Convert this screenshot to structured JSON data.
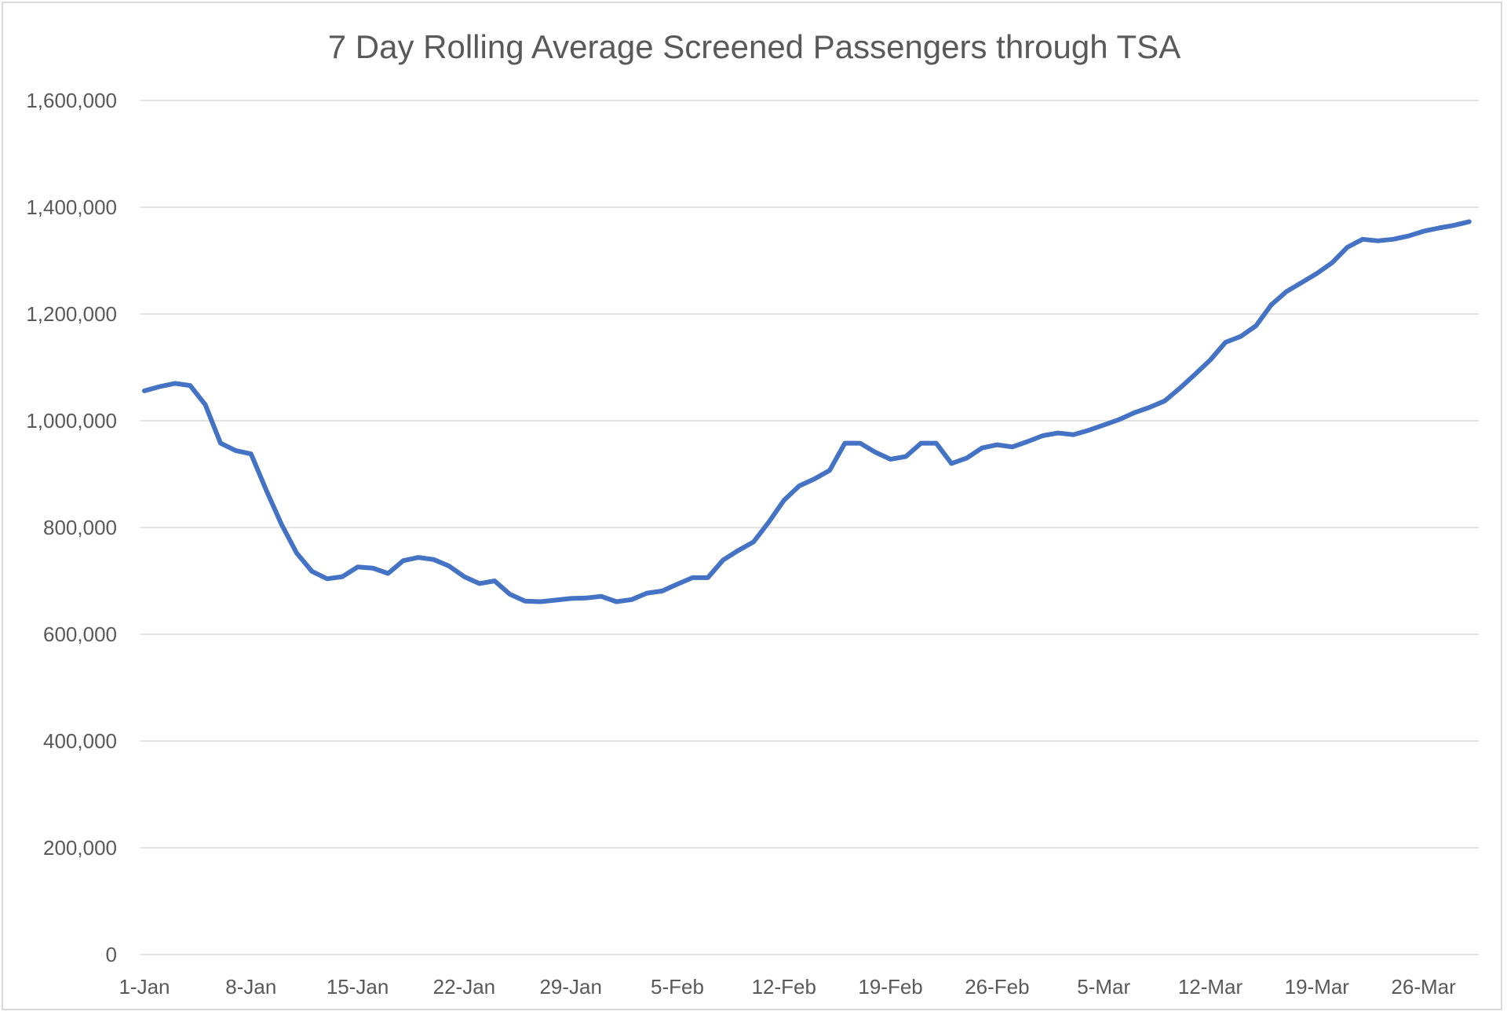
{
  "chart_data": {
    "type": "line",
    "title": "7 Day Rolling Average Screened Passengers through TSA",
    "xlabel": "",
    "ylabel": "",
    "ylim": [
      0,
      1600000
    ],
    "yticks": [
      0,
      200000,
      400000,
      600000,
      800000,
      1000000,
      1200000,
      1400000,
      1600000
    ],
    "ytick_labels": [
      "0",
      "200,000",
      "400,000",
      "600,000",
      "800,000",
      "1,000,000",
      "1,200,000",
      "1,400,000",
      "1,600,000"
    ],
    "xlim": [
      "1-Jan",
      "31-Mar"
    ],
    "xtick_labels": [
      "1-Jan",
      "8-Jan",
      "15-Jan",
      "22-Jan",
      "29-Jan",
      "5-Feb",
      "12-Feb",
      "19-Feb",
      "26-Feb",
      "5-Mar",
      "12-Mar",
      "19-Mar",
      "26-Mar"
    ],
    "grid": true,
    "legend": "none",
    "series_color": "#4472c4",
    "series": [
      {
        "values": [
          1056000,
          1064000,
          1070000,
          1066000,
          1030000,
          958000,
          944000,
          938000,
          870000,
          806000,
          752000,
          718000,
          704000,
          708000,
          726000,
          724000,
          714000,
          738000,
          744000,
          740000,
          728000,
          708000,
          695000,
          700000,
          675000,
          662000,
          661000,
          664000,
          667000,
          668000,
          671000,
          661000,
          665000,
          677000,
          681000,
          694000,
          706000,
          706000,
          739000,
          757000,
          773000,
          810000,
          851000,
          878000,
          891000,
          907000,
          958000,
          958000,
          941000,
          928000,
          933000,
          958000,
          958000,
          920000,
          930000,
          949000,
          955000,
          951000,
          961000,
          972000,
          977000,
          974000,
          982000,
          992000,
          1002000,
          1015000,
          1025000,
          1037000,
          1061000,
          1087000,
          1114000,
          1147000,
          1158000,
          1178000,
          1217000,
          1242000,
          1259000,
          1276000,
          1296000,
          1325000,
          1340000,
          1337000,
          1340000,
          1346000,
          1355000,
          1361000,
          1366000,
          1373000
        ]
      }
    ]
  }
}
